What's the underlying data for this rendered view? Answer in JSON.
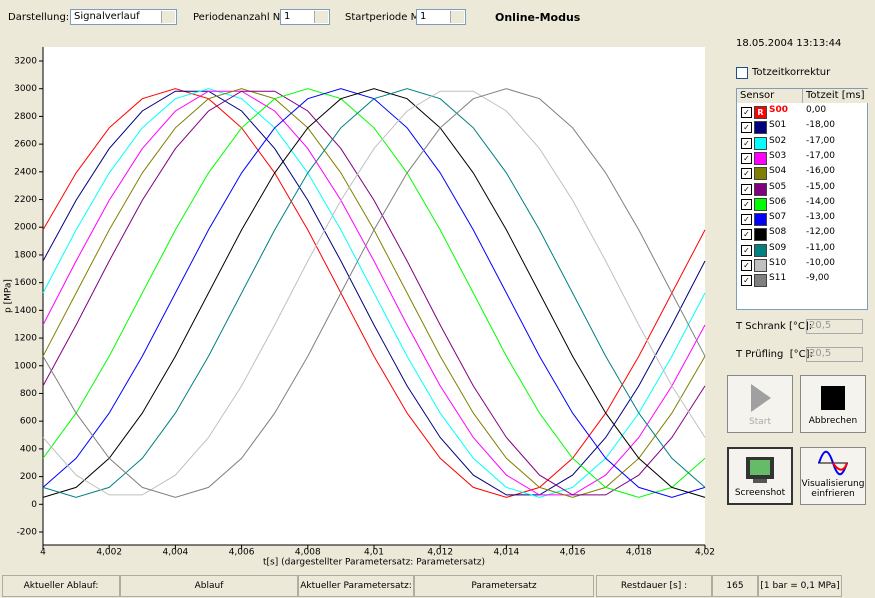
{
  "toolbar": {
    "darstellung_label": "Darstellung:",
    "darstellung_value": "Signalverlauf",
    "perioden_label": "Periodenanzahl N:",
    "perioden_value": "1",
    "start_label": "Startperiode M:",
    "start_value": "1",
    "mode": "Online-Modus"
  },
  "timestamp": "18.05.2004 13:13:44",
  "totzeit_checkbox": "Totzeitkorrektur",
  "sensor_table": {
    "headers": [
      "Sensor",
      "Totzeit [ms]"
    ],
    "marker": "R",
    "totzeit": [
      "0,00",
      "-18,00",
      "-17,00",
      "-17,00",
      "-16,00",
      "-15,00",
      "-14,00",
      "-13,00",
      "-12,00",
      "-11,00",
      "-10,00",
      "-9,00"
    ]
  },
  "temps": [
    {
      "label": "T Schrank [°C]:",
      "value": "20,5"
    },
    {
      "label": "T Prüfling  [°C]:",
      "value": "20,5"
    }
  ],
  "buttons": {
    "start": "Start",
    "abbrechen": "Abbrechen",
    "screenshot": "Screenshot",
    "freeze": [
      "Visualisierung",
      "einfrieren"
    ]
  },
  "status_bar": [
    "Aktueller Ablauf:",
    "Ablauf",
    "Aktueller Parametersatz:",
    "Parametersatz",
    "Restdauer [s] :",
    "165",
    "[1 bar = 0,1 MPa]"
  ],
  "chart_data": {
    "type": "line",
    "ylabel": "p [MPa]",
    "xlabel": "t[s]  (dargestellter Parametersatz: Parametersatz)",
    "grid": false,
    "x": [
      4,
      4.001,
      4.002,
      4.003,
      4.004,
      4.005,
      4.006,
      4.007,
      4.008,
      4.009,
      4.01,
      4.011,
      4.012,
      4.013,
      4.014,
      4.015,
      4.016,
      4.017,
      4.018,
      4.019,
      4.02
    ],
    "xlim": [
      4,
      4.02
    ],
    "xticks": [
      4,
      {
        "value": 4.002,
        "label": "4,002"
      },
      {
        "value": 4.004,
        "label": "4,004"
      },
      {
        "value": 4.006,
        "label": "4,006"
      },
      {
        "value": 4.008,
        "label": "4,008"
      },
      {
        "value": 4.01,
        "label": "4,01"
      },
      {
        "value": 4.012,
        "label": "4,012"
      },
      {
        "value": 4.014,
        "label": "4,014"
      },
      {
        "value": 4.016,
        "label": "4,016"
      },
      {
        "value": 4.018,
        "label": "4,018"
      },
      {
        "value": 4.02,
        "label": "4,02"
      }
    ],
    "ylim": [
      -200,
      3200
    ],
    "yticks": [
      -200,
      0,
      200,
      400,
      600,
      800,
      1000,
      1200,
      1400,
      1600,
      1800,
      2000,
      2200,
      2400,
      2600,
      2800,
      3000,
      3200
    ],
    "series": [
      {
        "name": "S00",
        "color": "#ff0000",
        "values": [
          1981,
          2392,
          2718,
          2928,
          3000,
          2928,
          2718,
          2392,
          1981,
          1525,
          1069,
          658,
          332,
          122,
          50,
          122,
          332,
          658,
          1069,
          1525,
          1981
        ]
      },
      {
        "name": "S01",
        "color": "#000080",
        "values": [
          1756,
          2195,
          2568,
          2839,
          2982,
          2982,
          2839,
          2568,
          2195,
          1756,
          1294,
          855,
          482,
          211,
          68,
          68,
          211,
          482,
          855,
          1294,
          1756
        ]
      },
      {
        "name": "S02",
        "color": "#00ffff",
        "values": [
          1525,
          1981,
          2392,
          2718,
          2928,
          3000,
          2928,
          2718,
          2392,
          1981,
          1525,
          1069,
          658,
          332,
          122,
          50,
          122,
          332,
          658,
          1069,
          1525
        ]
      },
      {
        "name": "S03",
        "color": "#ff00ff",
        "values": [
          1294,
          1756,
          2195,
          2568,
          2839,
          2982,
          2982,
          2839,
          2568,
          2195,
          1756,
          1294,
          855,
          482,
          211,
          68,
          68,
          211,
          482,
          855,
          1294
        ]
      },
      {
        "name": "S04",
        "color": "#808000",
        "values": [
          1069,
          1525,
          1981,
          2392,
          2718,
          2928,
          3000,
          2928,
          2718,
          2392,
          1981,
          1525,
          1069,
          658,
          332,
          122,
          50,
          122,
          332,
          658,
          1069
        ]
      },
      {
        "name": "S05",
        "color": "#800080",
        "values": [
          855,
          1294,
          1756,
          2195,
          2568,
          2839,
          2982,
          2982,
          2839,
          2568,
          2195,
          1756,
          1294,
          855,
          482,
          211,
          68,
          68,
          211,
          482,
          855
        ]
      },
      {
        "name": "S06",
        "color": "#00ff00",
        "values": [
          332,
          658,
          1069,
          1525,
          1981,
          2392,
          2718,
          2928,
          3000,
          2928,
          2718,
          2392,
          1981,
          1525,
          1069,
          658,
          332,
          122,
          50,
          122,
          332
        ]
      },
      {
        "name": "S07",
        "color": "#0000ff",
        "values": [
          122,
          332,
          658,
          1069,
          1525,
          1981,
          2392,
          2718,
          2928,
          3000,
          2928,
          2718,
          2392,
          1981,
          1525,
          1069,
          658,
          332,
          122,
          50,
          122
        ]
      },
      {
        "name": "S08",
        "color": "#000000",
        "values": [
          50,
          122,
          332,
          658,
          1069,
          1525,
          1981,
          2392,
          2718,
          2928,
          3000,
          2928,
          2718,
          2392,
          1981,
          1525,
          1069,
          658,
          332,
          122,
          50
        ]
      },
      {
        "name": "S09",
        "color": "#008080",
        "values": [
          122,
          50,
          122,
          332,
          658,
          1069,
          1525,
          1981,
          2392,
          2718,
          2928,
          3000,
          2928,
          2718,
          2392,
          1981,
          1525,
          1069,
          658,
          332,
          122
        ]
      },
      {
        "name": "S10",
        "color": "#c0c0c0",
        "values": [
          482,
          211,
          68,
          68,
          211,
          482,
          855,
          1294,
          1756,
          2195,
          2568,
          2839,
          2982,
          2982,
          2839,
          2568,
          2195,
          1756,
          1294,
          855,
          482
        ]
      },
      {
        "name": "S11",
        "color": "#808080",
        "values": [
          1069,
          658,
          332,
          122,
          50,
          122,
          332,
          658,
          1069,
          1525,
          1981,
          2392,
          2718,
          2928,
          3000,
          2928,
          2718,
          2392,
          1981,
          1525,
          1069
        ]
      }
    ]
  }
}
